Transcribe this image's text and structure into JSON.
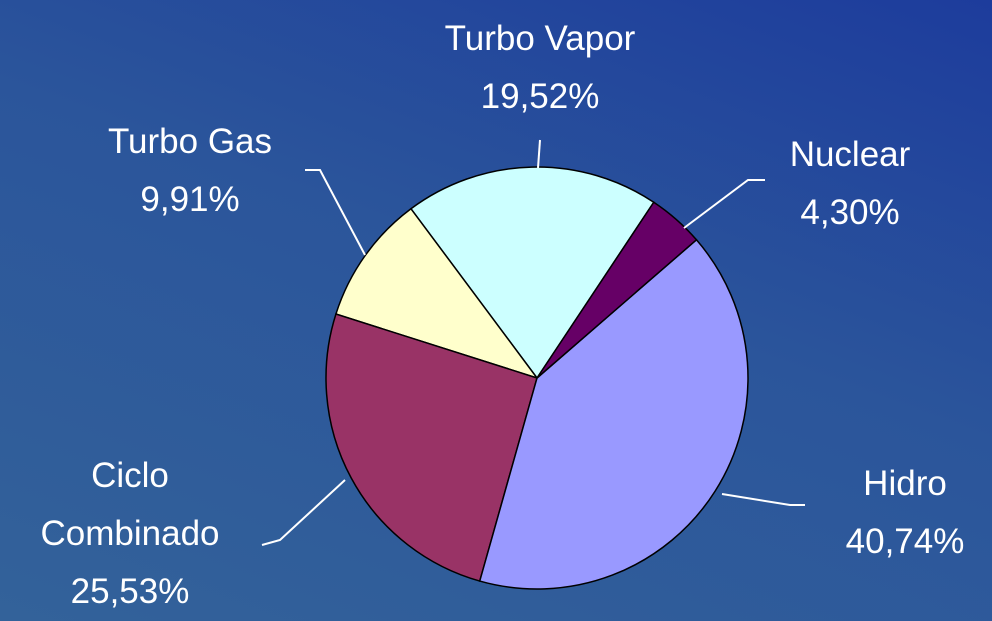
{
  "chart_data": {
    "type": "pie",
    "categories": [
      "Nuclear",
      "Hidro",
      "Ciclo Combinado",
      "Turbo Gas",
      "Turbo Vapor"
    ],
    "values": [
      4.3,
      40.74,
      25.53,
      9.91,
      19.52
    ],
    "value_labels": [
      "4,30%",
      "40,74%",
      "25,53%",
      "9,91%",
      "19,52%"
    ],
    "colors": [
      "#660066",
      "#9999ff",
      "#993366",
      "#ffffcc",
      "#ccffff"
    ]
  }
}
